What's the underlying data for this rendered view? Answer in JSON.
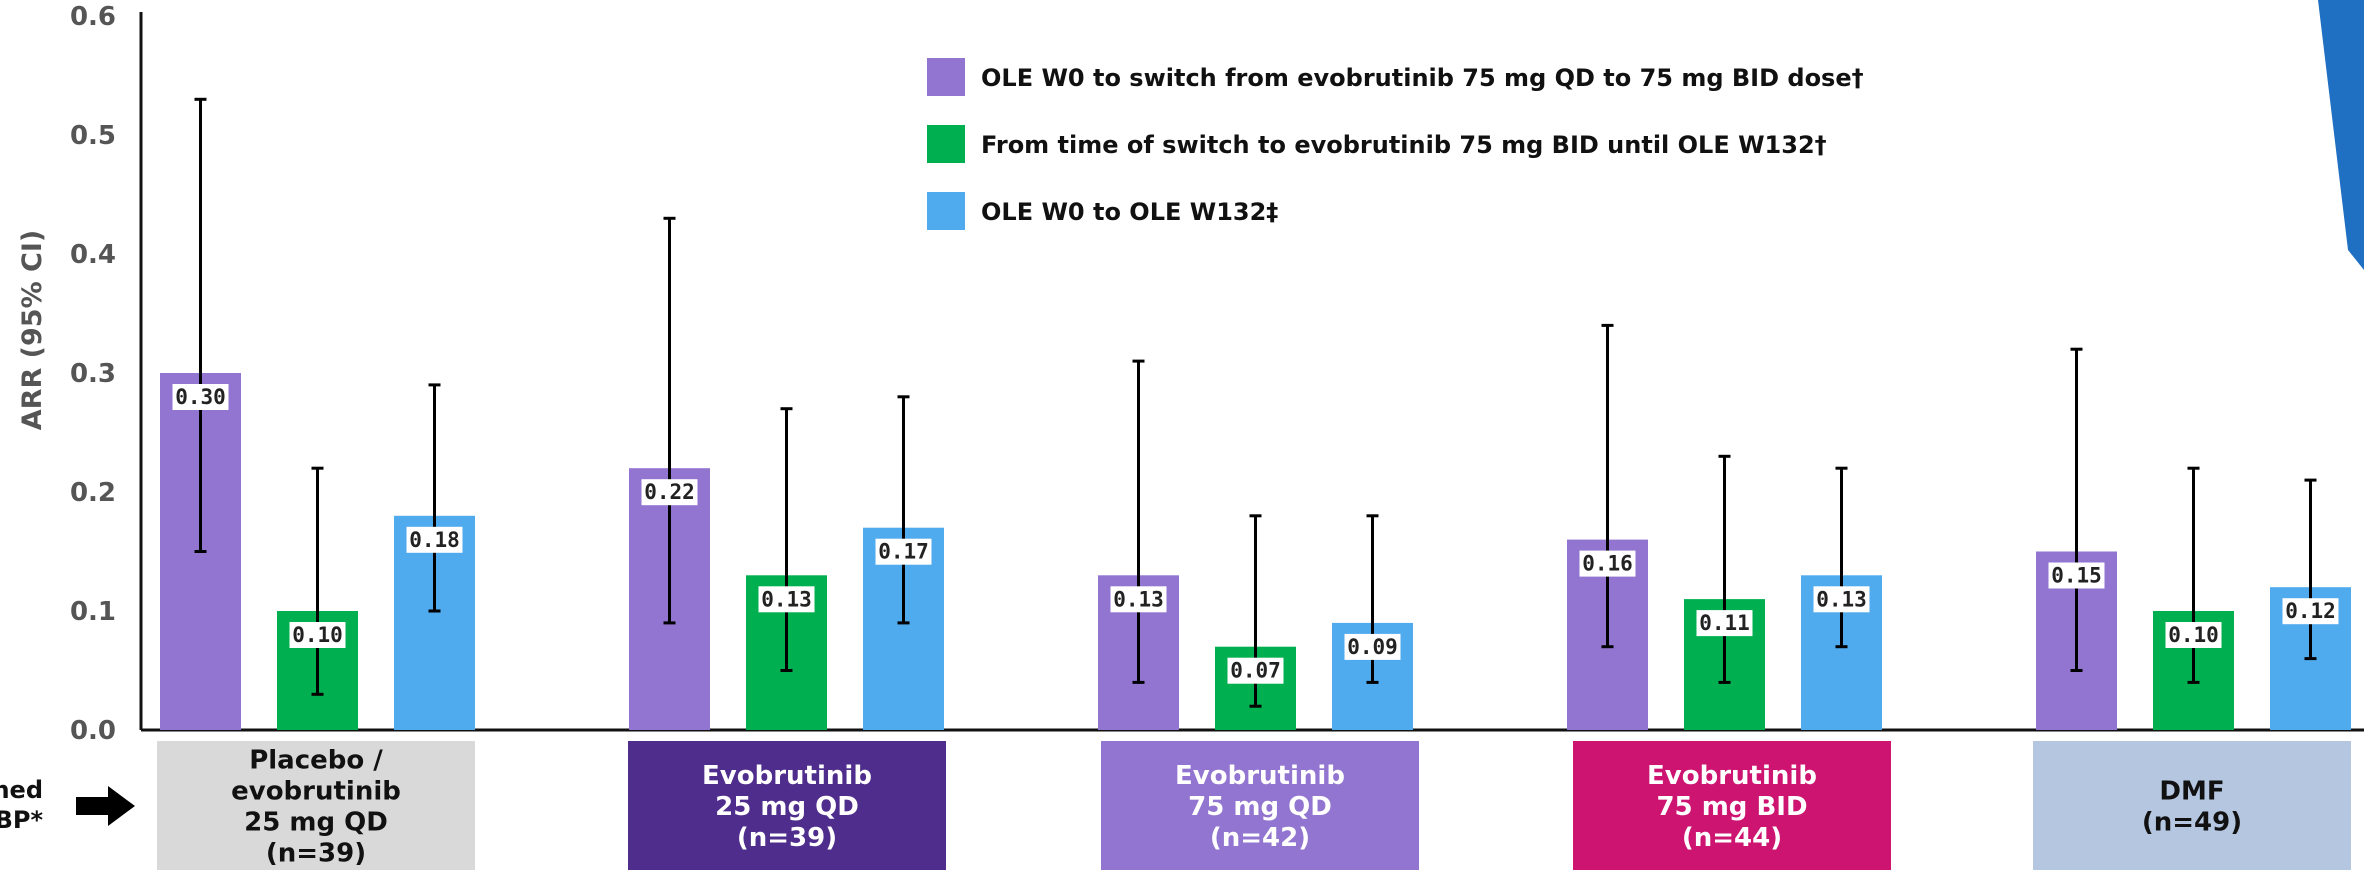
{
  "chart_data": {
    "type": "bar",
    "ylabel": "ARR (95% CI)",
    "ylim": [
      0,
      0.6
    ],
    "yticks": [
      "0.0",
      "0.1",
      "0.2",
      "0.3",
      "0.4",
      "0.5",
      "0.6"
    ],
    "legend_position": "top-center",
    "categories": [
      "Placebo / evobrutinib 25 mg QD (n=39)",
      "Evobrutinib 25 mg QD (n=39)",
      "Evobrutinib 75 mg QD (n=42)",
      "Evobrutinib 75 mg BID (n=44)",
      "DMF (n=49)"
    ],
    "series": [
      {
        "name": "OLE W0 to switch from evobrutinib 75 mg QD to 75 mg BID dose†",
        "color": "#9275D0",
        "values": [
          0.3,
          0.22,
          0.13,
          0.16,
          0.15
        ],
        "labels": [
          "0.30",
          "0.22",
          "0.13",
          "0.16",
          "0.15"
        ],
        "ci_low": [
          0.15,
          0.09,
          0.04,
          0.07,
          0.05
        ],
        "ci_high": [
          0.53,
          0.43,
          0.31,
          0.34,
          0.32
        ]
      },
      {
        "name": "From time of switch to evobrutinib 75 mg BID until OLE W132†",
        "color": "#00B050",
        "values": [
          0.1,
          0.13,
          0.07,
          0.11,
          0.1
        ],
        "labels": [
          "0.10",
          "0.13",
          "0.07",
          "0.11",
          "0.10"
        ],
        "ci_low": [
          0.03,
          0.05,
          0.02,
          0.04,
          0.04
        ],
        "ci_high": [
          0.22,
          0.27,
          0.18,
          0.23,
          0.22
        ]
      },
      {
        "name": "OLE W0 to OLE W132‡",
        "color": "#4FAAEE",
        "values": [
          0.18,
          0.17,
          0.09,
          0.13,
          0.12
        ],
        "labels": [
          "0.18",
          "0.17",
          "0.09",
          "0.13",
          "0.12"
        ],
        "ci_low": [
          0.1,
          0.09,
          0.04,
          0.07,
          0.06
        ],
        "ci_high": [
          0.29,
          0.28,
          0.18,
          0.22,
          0.21
        ]
      }
    ],
    "group_labels": [
      {
        "lines": [
          "Placebo /",
          "evobrutinib",
          "25 mg QD",
          "(n=39)"
        ],
        "bg": "#D9D9D9",
        "fg": "#111111"
      },
      {
        "lines": [
          "Evobrutinib",
          "25 mg QD",
          "(n=39)"
        ],
        "bg": "#4F2D8C",
        "fg": "#FFFFFF"
      },
      {
        "lines": [
          "Evobrutinib",
          "75 mg QD",
          "(n=42)"
        ],
        "bg": "#9275D0",
        "fg": "#FFFFFF"
      },
      {
        "lines": [
          "Evobrutinib",
          "75 mg BID",
          "(n=44)"
        ],
        "bg": "#CC1470",
        "fg": "#FFFFFF"
      },
      {
        "lines": [
          "DMF",
          "(n=49)"
        ],
        "bg": "#B4C6E0",
        "fg": "#111111"
      }
    ],
    "side_label_lines": [
      "ned",
      "BP*"
    ],
    "arrow_icon": "right-arrow-icon",
    "accent_color": "#1F6FC2"
  }
}
